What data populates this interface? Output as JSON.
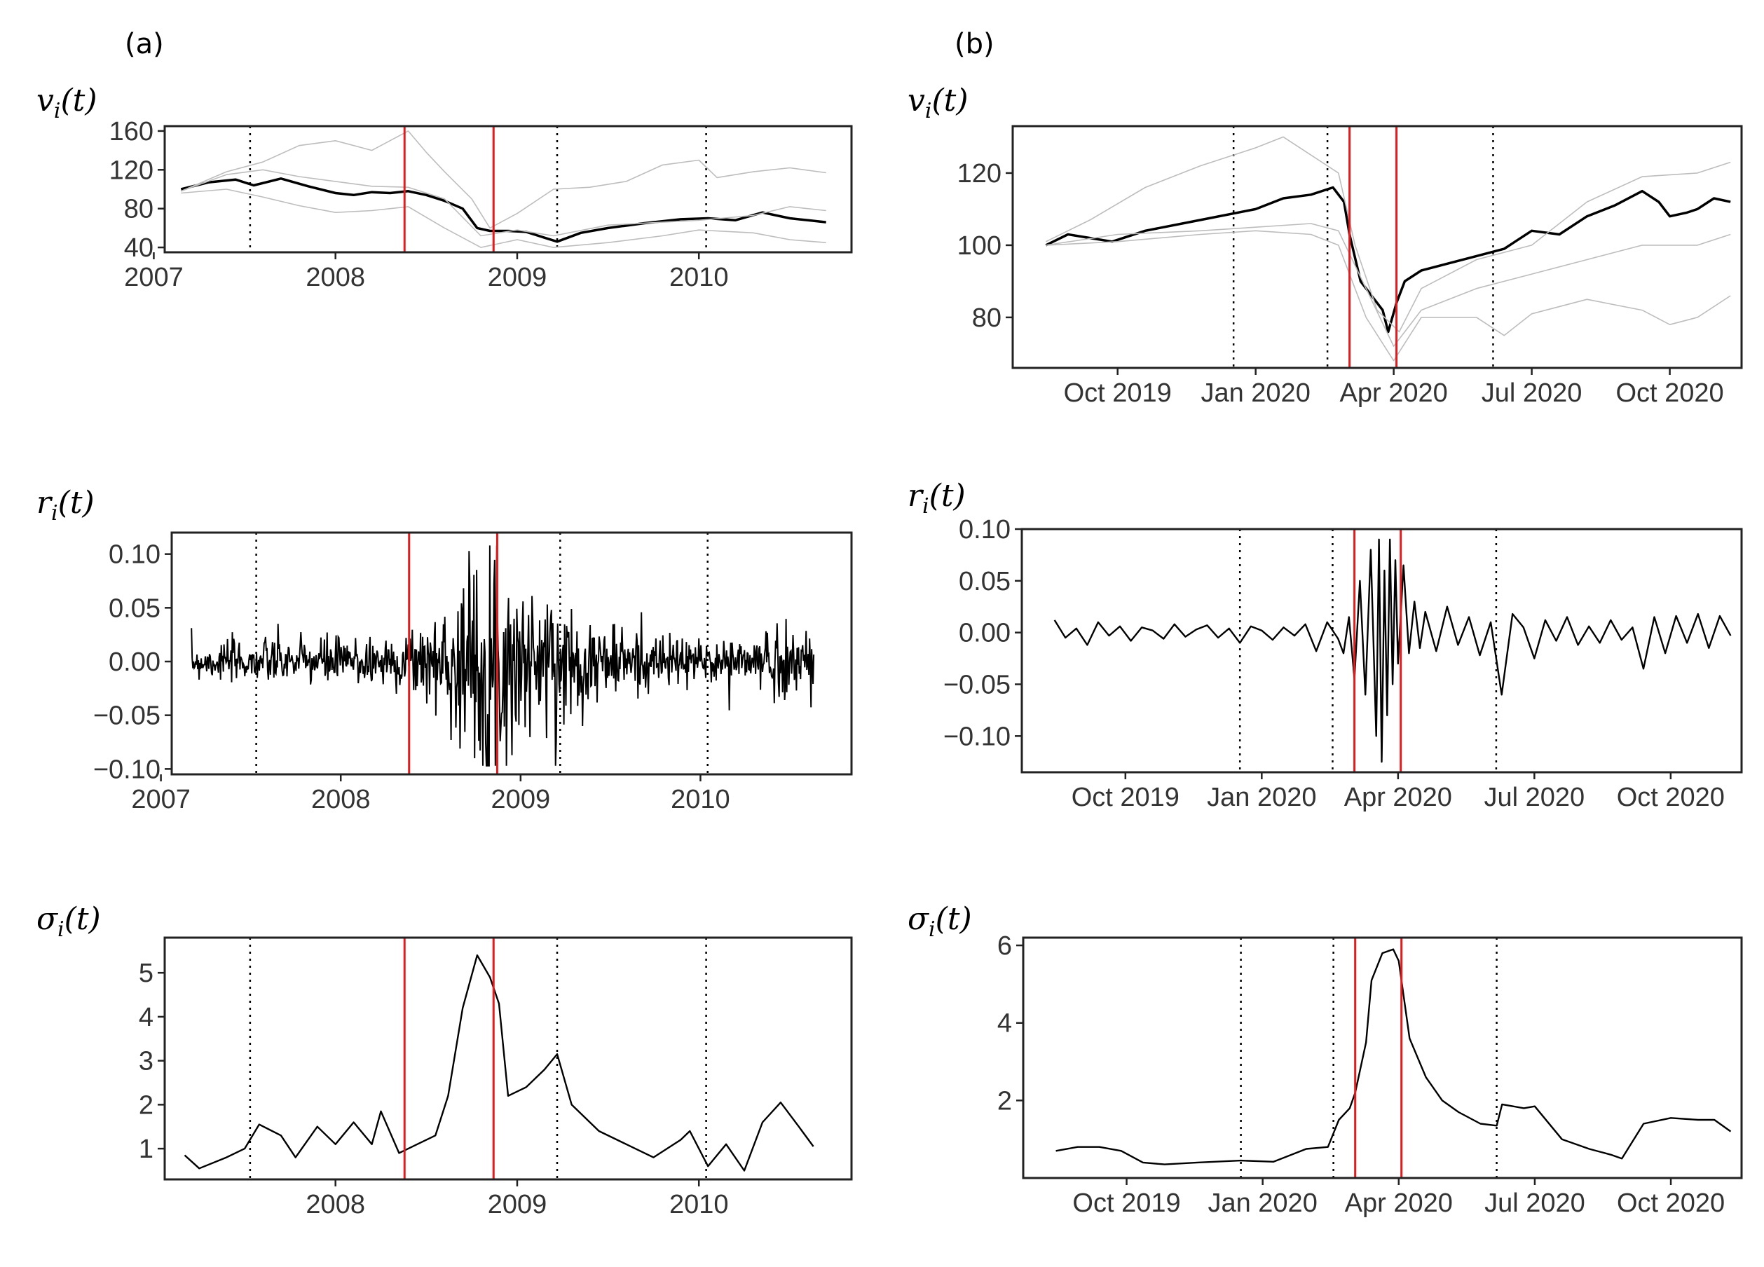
{
  "figure": {
    "panel_a_label": "(a)",
    "panel_b_label": "(b)",
    "ylabels": {
      "v": "v",
      "r": "r",
      "s": "σ",
      "sub": "i",
      "arg": "(t)"
    }
  },
  "colors": {
    "main_series": "#000000",
    "peer_series": "#bdbdbd",
    "event_line": "#e41a1c",
    "frame": "#222222",
    "tick_text": "#333333"
  },
  "chart_data": [
    {
      "id": "a-v",
      "type": "line",
      "title": "",
      "ylabel": "v_i(t)",
      "xlim": [
        2007.06,
        2010.84
      ],
      "ylim": [
        35,
        165
      ],
      "xticks": [
        2007,
        2008,
        2009,
        2010
      ],
      "xtick_labels": [
        "2007",
        "2008",
        "2009",
        "2010"
      ],
      "yticks": [
        40,
        80,
        120,
        160
      ],
      "ytick_labels": [
        "40",
        "80",
        "120",
        "160"
      ],
      "dotted_lines": [
        2007.53,
        2009.22,
        2010.04
      ],
      "event_lines": [
        2008.38,
        2008.87
      ],
      "series": [
        {
          "name": "focal",
          "style": "main",
          "x": [
            2007.15,
            2007.3,
            2007.45,
            2007.55,
            2007.7,
            2007.85,
            2008.0,
            2008.1,
            2008.2,
            2008.3,
            2008.4,
            2008.5,
            2008.6,
            2008.7,
            2008.78,
            2008.85,
            2008.95,
            2009.05,
            2009.15,
            2009.22,
            2009.35,
            2009.5,
            2009.7,
            2009.9,
            2010.05,
            2010.2,
            2010.35,
            2010.5,
            2010.6,
            2010.7
          ],
          "y": [
            100,
            107,
            110,
            104,
            111,
            103,
            96,
            94,
            97,
            96,
            98,
            94,
            88,
            80,
            60,
            57,
            57,
            56,
            50,
            46,
            55,
            60,
            65,
            69,
            70,
            68,
            76,
            70,
            68,
            66
          ]
        },
        {
          "name": "peer-high",
          "style": "peer",
          "x": [
            2007.15,
            2007.4,
            2007.6,
            2007.8,
            2008.0,
            2008.2,
            2008.4,
            2008.5,
            2008.6,
            2008.75,
            2008.85,
            2009.0,
            2009.2,
            2009.4,
            2009.6,
            2009.8,
            2010.0,
            2010.1,
            2010.3,
            2010.5,
            2010.7
          ],
          "y": [
            98,
            118,
            128,
            145,
            150,
            140,
            160,
            138,
            118,
            90,
            60,
            75,
            100,
            102,
            108,
            125,
            130,
            112,
            118,
            122,
            117
          ]
        },
        {
          "name": "peer-mid",
          "style": "peer",
          "x": [
            2007.15,
            2007.4,
            2007.6,
            2007.8,
            2008.0,
            2008.2,
            2008.4,
            2008.6,
            2008.8,
            2009.0,
            2009.2,
            2009.5,
            2009.8,
            2010.0,
            2010.3,
            2010.5,
            2010.7
          ],
          "y": [
            98,
            115,
            120,
            113,
            108,
            103,
            102,
            90,
            52,
            58,
            52,
            63,
            66,
            68,
            73,
            82,
            78
          ]
        },
        {
          "name": "peer-low",
          "style": "peer",
          "x": [
            2007.15,
            2007.4,
            2007.6,
            2007.8,
            2008.0,
            2008.2,
            2008.4,
            2008.6,
            2008.8,
            2009.0,
            2009.2,
            2009.5,
            2009.8,
            2010.0,
            2010.3,
            2010.5,
            2010.7
          ],
          "y": [
            96,
            100,
            92,
            83,
            76,
            78,
            82,
            60,
            40,
            48,
            40,
            45,
            52,
            58,
            55,
            48,
            45
          ]
        }
      ]
    },
    {
      "id": "a-r",
      "type": "line",
      "title": "",
      "ylabel": "r_i(t)",
      "xlim": [
        2007.06,
        2010.84
      ],
      "ylim": [
        -0.105,
        0.12
      ],
      "xticks": [
        2007,
        2008,
        2009,
        2010
      ],
      "xtick_labels": [
        "2007",
        "2008",
        "2009",
        "2010"
      ],
      "yticks": [
        -0.1,
        -0.05,
        0.0,
        0.05,
        0.1
      ],
      "ytick_labels": [
        "−0.10",
        "−0.05",
        "0.00",
        "0.05",
        "0.10"
      ],
      "dotted_lines": [
        2007.53,
        2009.22,
        2010.04
      ],
      "event_lines": [
        2008.38,
        2008.87
      ],
      "series": [
        {
          "name": "focal",
          "style": "returns",
          "x": [
            2007.17,
            2010.63
          ],
          "y": [
            0,
            0
          ],
          "volatility": {
            "x": [
              2007.17,
              2007.5,
              2008.0,
              2008.3,
              2008.55,
              2008.7,
              2008.8,
              2008.9,
              2009.0,
              2009.2,
              2009.4,
              2009.8,
              2010.1,
              2010.3,
              2010.45,
              2010.63
            ],
            "y": [
              0.008,
              0.01,
              0.012,
              0.013,
              0.022,
              0.04,
              0.055,
              0.05,
              0.035,
              0.03,
              0.02,
              0.012,
              0.01,
              0.014,
              0.018,
              0.013
            ]
          }
        }
      ]
    },
    {
      "id": "a-s",
      "type": "line",
      "title": "",
      "ylabel": "σ_i(t)",
      "xlim": [
        2007.06,
        2010.84
      ],
      "ylim": [
        0.3,
        5.8
      ],
      "xticks": [
        2008,
        2009,
        2010
      ],
      "xtick_labels": [
        "2008",
        "2009",
        "2010"
      ],
      "yticks": [
        1,
        2,
        3,
        4,
        5
      ],
      "ytick_labels": [
        "1",
        "2",
        "3",
        "4",
        "5"
      ],
      "dotted_lines": [
        2007.53,
        2009.22,
        2010.04
      ],
      "event_lines": [
        2008.38,
        2008.87
      ],
      "series": [
        {
          "name": "focal",
          "style": "main-thin",
          "x": [
            2007.17,
            2007.25,
            2007.4,
            2007.5,
            2007.58,
            2007.7,
            2007.78,
            2007.9,
            2008.0,
            2008.1,
            2008.2,
            2008.25,
            2008.35,
            2008.45,
            2008.55,
            2008.62,
            2008.7,
            2008.78,
            2008.85,
            2008.9,
            2008.95,
            2009.05,
            2009.15,
            2009.22,
            2009.3,
            2009.45,
            2009.6,
            2009.75,
            2009.9,
            2009.95,
            2010.05,
            2010.15,
            2010.25,
            2010.35,
            2010.45,
            2010.55,
            2010.63
          ],
          "y": [
            0.85,
            0.55,
            0.8,
            1.0,
            1.55,
            1.3,
            0.8,
            1.5,
            1.1,
            1.6,
            1.1,
            1.85,
            0.9,
            1.1,
            1.3,
            2.2,
            4.2,
            5.4,
            4.9,
            4.3,
            2.2,
            2.4,
            2.8,
            3.15,
            2.0,
            1.4,
            1.1,
            0.8,
            1.2,
            1.4,
            0.6,
            1.1,
            0.5,
            1.6,
            2.05,
            1.5,
            1.05
          ]
        }
      ]
    },
    {
      "id": "b-v",
      "type": "line",
      "title": "",
      "ylabel": "v_i(t)",
      "xlim": [
        2019.56,
        2020.88
      ],
      "ylim": [
        66,
        133
      ],
      "xticks": [
        2019.75,
        2020.0,
        2020.25,
        2020.5,
        2020.75
      ],
      "xtick_labels": [
        "Oct 2019",
        "Jan 2020",
        "Apr 2020",
        "Jul 2020",
        "Oct 2020"
      ],
      "yticks": [
        80,
        100,
        120
      ],
      "ytick_labels": [
        "80",
        "100",
        "120"
      ],
      "dotted_lines": [
        2019.96,
        2020.13,
        2020.43
      ],
      "event_lines": [
        2020.17,
        2020.255
      ],
      "series": [
        {
          "name": "focal",
          "style": "main",
          "x": [
            2019.62,
            2019.66,
            2019.7,
            2019.74,
            2019.8,
            2019.9,
            2020.0,
            2020.05,
            2020.1,
            2020.14,
            2020.16,
            2020.17,
            2020.19,
            2020.21,
            2020.23,
            2020.24,
            2020.255,
            2020.27,
            2020.3,
            2020.35,
            2020.4,
            2020.45,
            2020.5,
            2020.55,
            2020.6,
            2020.65,
            2020.7,
            2020.73,
            2020.75,
            2020.78,
            2020.8,
            2020.83,
            2020.86
          ],
          "y": [
            100,
            103,
            102,
            101,
            104,
            107,
            110,
            113,
            114,
            116,
            112,
            103,
            90,
            86,
            82,
            76,
            84,
            90,
            93,
            95,
            97,
            99,
            104,
            103,
            108,
            111,
            115,
            112,
            108,
            109,
            110,
            113,
            112
          ]
        },
        {
          "name": "peer-high",
          "style": "peer",
          "x": [
            2019.62,
            2019.7,
            2019.8,
            2019.9,
            2020.0,
            2020.05,
            2020.1,
            2020.15,
            2020.18,
            2020.22,
            2020.26,
            2020.3,
            2020.4,
            2020.5,
            2020.6,
            2020.7,
            2020.8,
            2020.86
          ],
          "y": [
            101,
            107,
            116,
            122,
            127,
            130,
            125,
            120,
            100,
            82,
            76,
            88,
            96,
            100,
            112,
            119,
            120,
            123
          ]
        },
        {
          "name": "peer-mid",
          "style": "peer",
          "x": [
            2019.62,
            2019.75,
            2019.9,
            2020.0,
            2020.1,
            2020.15,
            2020.2,
            2020.25,
            2020.3,
            2020.4,
            2020.5,
            2020.6,
            2020.7,
            2020.8,
            2020.86
          ],
          "y": [
            100,
            103,
            104,
            105,
            106,
            104,
            88,
            72,
            82,
            88,
            92,
            96,
            100,
            100,
            103
          ]
        },
        {
          "name": "peer-low",
          "style": "peer",
          "x": [
            2019.62,
            2019.75,
            2019.9,
            2020.0,
            2020.1,
            2020.15,
            2020.2,
            2020.25,
            2020.3,
            2020.4,
            2020.45,
            2020.5,
            2020.6,
            2020.7,
            2020.75,
            2020.8,
            2020.86
          ],
          "y": [
            100,
            101,
            103,
            104,
            103,
            100,
            80,
            68,
            80,
            80,
            75,
            81,
            85,
            82,
            78,
            80,
            86
          ]
        }
      ]
    },
    {
      "id": "b-r",
      "type": "line",
      "title": "",
      "ylabel": "r_i(t)",
      "xlim": [
        2019.56,
        2020.88
      ],
      "ylim": [
        -0.135,
        0.1
      ],
      "xticks": [
        2019.75,
        2020.0,
        2020.25,
        2020.5,
        2020.75
      ],
      "xtick_labels": [
        "Oct 2019",
        "Jan 2020",
        "Apr 2020",
        "Jul 2020",
        "Oct 2020"
      ],
      "yticks": [
        -0.1,
        -0.05,
        0.0,
        0.05,
        0.1
      ],
      "ytick_labels": [
        "−0.10",
        "−0.05",
        "0.00",
        "0.05",
        "0.10"
      ],
      "dotted_lines": [
        2019.96,
        2020.13,
        2020.43
      ],
      "event_lines": [
        2020.17,
        2020.255
      ],
      "series": [
        {
          "name": "focal",
          "style": "returns-daily",
          "x": [
            2019.62,
            2019.64,
            2019.66,
            2019.68,
            2019.7,
            2019.72,
            2019.74,
            2019.76,
            2019.78,
            2019.8,
            2019.82,
            2019.84,
            2019.86,
            2019.88,
            2019.9,
            2019.92,
            2019.94,
            2019.96,
            2019.98,
            2020.0,
            2020.02,
            2020.04,
            2020.06,
            2020.08,
            2020.1,
            2020.12,
            2020.14,
            2020.15,
            2020.16,
            2020.17,
            2020.18,
            2020.19,
            2020.2,
            2020.21,
            2020.215,
            2020.22,
            2020.225,
            2020.23,
            2020.235,
            2020.24,
            2020.245,
            2020.25,
            2020.26,
            2020.27,
            2020.28,
            2020.29,
            2020.3,
            2020.32,
            2020.34,
            2020.36,
            2020.38,
            2020.4,
            2020.42,
            2020.44,
            2020.46,
            2020.48,
            2020.5,
            2020.52,
            2020.54,
            2020.56,
            2020.58,
            2020.6,
            2020.62,
            2020.64,
            2020.66,
            2020.68,
            2020.7,
            2020.72,
            2020.74,
            2020.76,
            2020.78,
            2020.8,
            2020.82,
            2020.84,
            2020.86
          ],
          "y": [
            0.012,
            -0.005,
            0.004,
            -0.012,
            0.01,
            -0.003,
            0.006,
            -0.008,
            0.005,
            0.002,
            -0.006,
            0.008,
            -0.004,
            0.003,
            0.007,
            -0.005,
            0.004,
            -0.01,
            0.006,
            0.002,
            -0.007,
            0.005,
            -0.003,
            0.008,
            -0.018,
            0.01,
            -0.006,
            -0.02,
            0.015,
            -0.045,
            0.05,
            -0.06,
            0.08,
            -0.1,
            0.09,
            -0.125,
            0.06,
            -0.08,
            0.09,
            -0.05,
            0.07,
            -0.03,
            0.065,
            -0.02,
            0.03,
            -0.015,
            0.02,
            -0.018,
            0.025,
            -0.012,
            0.015,
            -0.022,
            0.01,
            -0.06,
            0.018,
            0.005,
            -0.025,
            0.012,
            -0.008,
            0.015,
            -0.012,
            0.006,
            -0.01,
            0.012,
            -0.007,
            0.005,
            -0.035,
            0.015,
            -0.02,
            0.016,
            -0.01,
            0.018,
            -0.015,
            0.016,
            -0.003
          ]
        }
      ]
    },
    {
      "id": "b-s",
      "type": "line",
      "title": "",
      "ylabel": "σ_i(t)",
      "xlim": [
        2019.56,
        2020.88
      ],
      "ylim": [
        0.0,
        6.2
      ],
      "xticks": [
        2019.75,
        2020.0,
        2020.25,
        2020.5,
        2020.75
      ],
      "xtick_labels": [
        "Oct 2019",
        "Jan 2020",
        "Apr 2020",
        "Jul 2020",
        "Oct 2020"
      ],
      "yticks": [
        2,
        4,
        6
      ],
      "ytick_labels": [
        "2",
        "4",
        "6"
      ],
      "dotted_lines": [
        2019.96,
        2020.13,
        2020.43
      ],
      "event_lines": [
        2020.17,
        2020.255
      ],
      "series": [
        {
          "name": "focal",
          "style": "main-thin",
          "x": [
            2019.62,
            2019.66,
            2019.7,
            2019.74,
            2019.78,
            2019.82,
            2019.88,
            2019.96,
            2020.02,
            2020.08,
            2020.12,
            2020.14,
            2020.16,
            2020.17,
            2020.19,
            2020.2,
            2020.22,
            2020.24,
            2020.25,
            2020.27,
            2020.3,
            2020.33,
            2020.36,
            2020.4,
            2020.43,
            2020.44,
            2020.48,
            2020.5,
            2020.55,
            2020.6,
            2020.64,
            2020.66,
            2020.7,
            2020.75,
            2020.8,
            2020.83,
            2020.86
          ],
          "y": [
            0.7,
            0.8,
            0.8,
            0.7,
            0.4,
            0.35,
            0.4,
            0.45,
            0.42,
            0.75,
            0.8,
            1.5,
            1.8,
            2.2,
            3.5,
            5.1,
            5.8,
            5.9,
            5.6,
            3.6,
            2.6,
            2.0,
            1.7,
            1.4,
            1.35,
            1.9,
            1.8,
            1.85,
            1.0,
            0.75,
            0.6,
            0.5,
            1.4,
            1.55,
            1.5,
            1.5,
            1.2
          ]
        }
      ]
    }
  ]
}
